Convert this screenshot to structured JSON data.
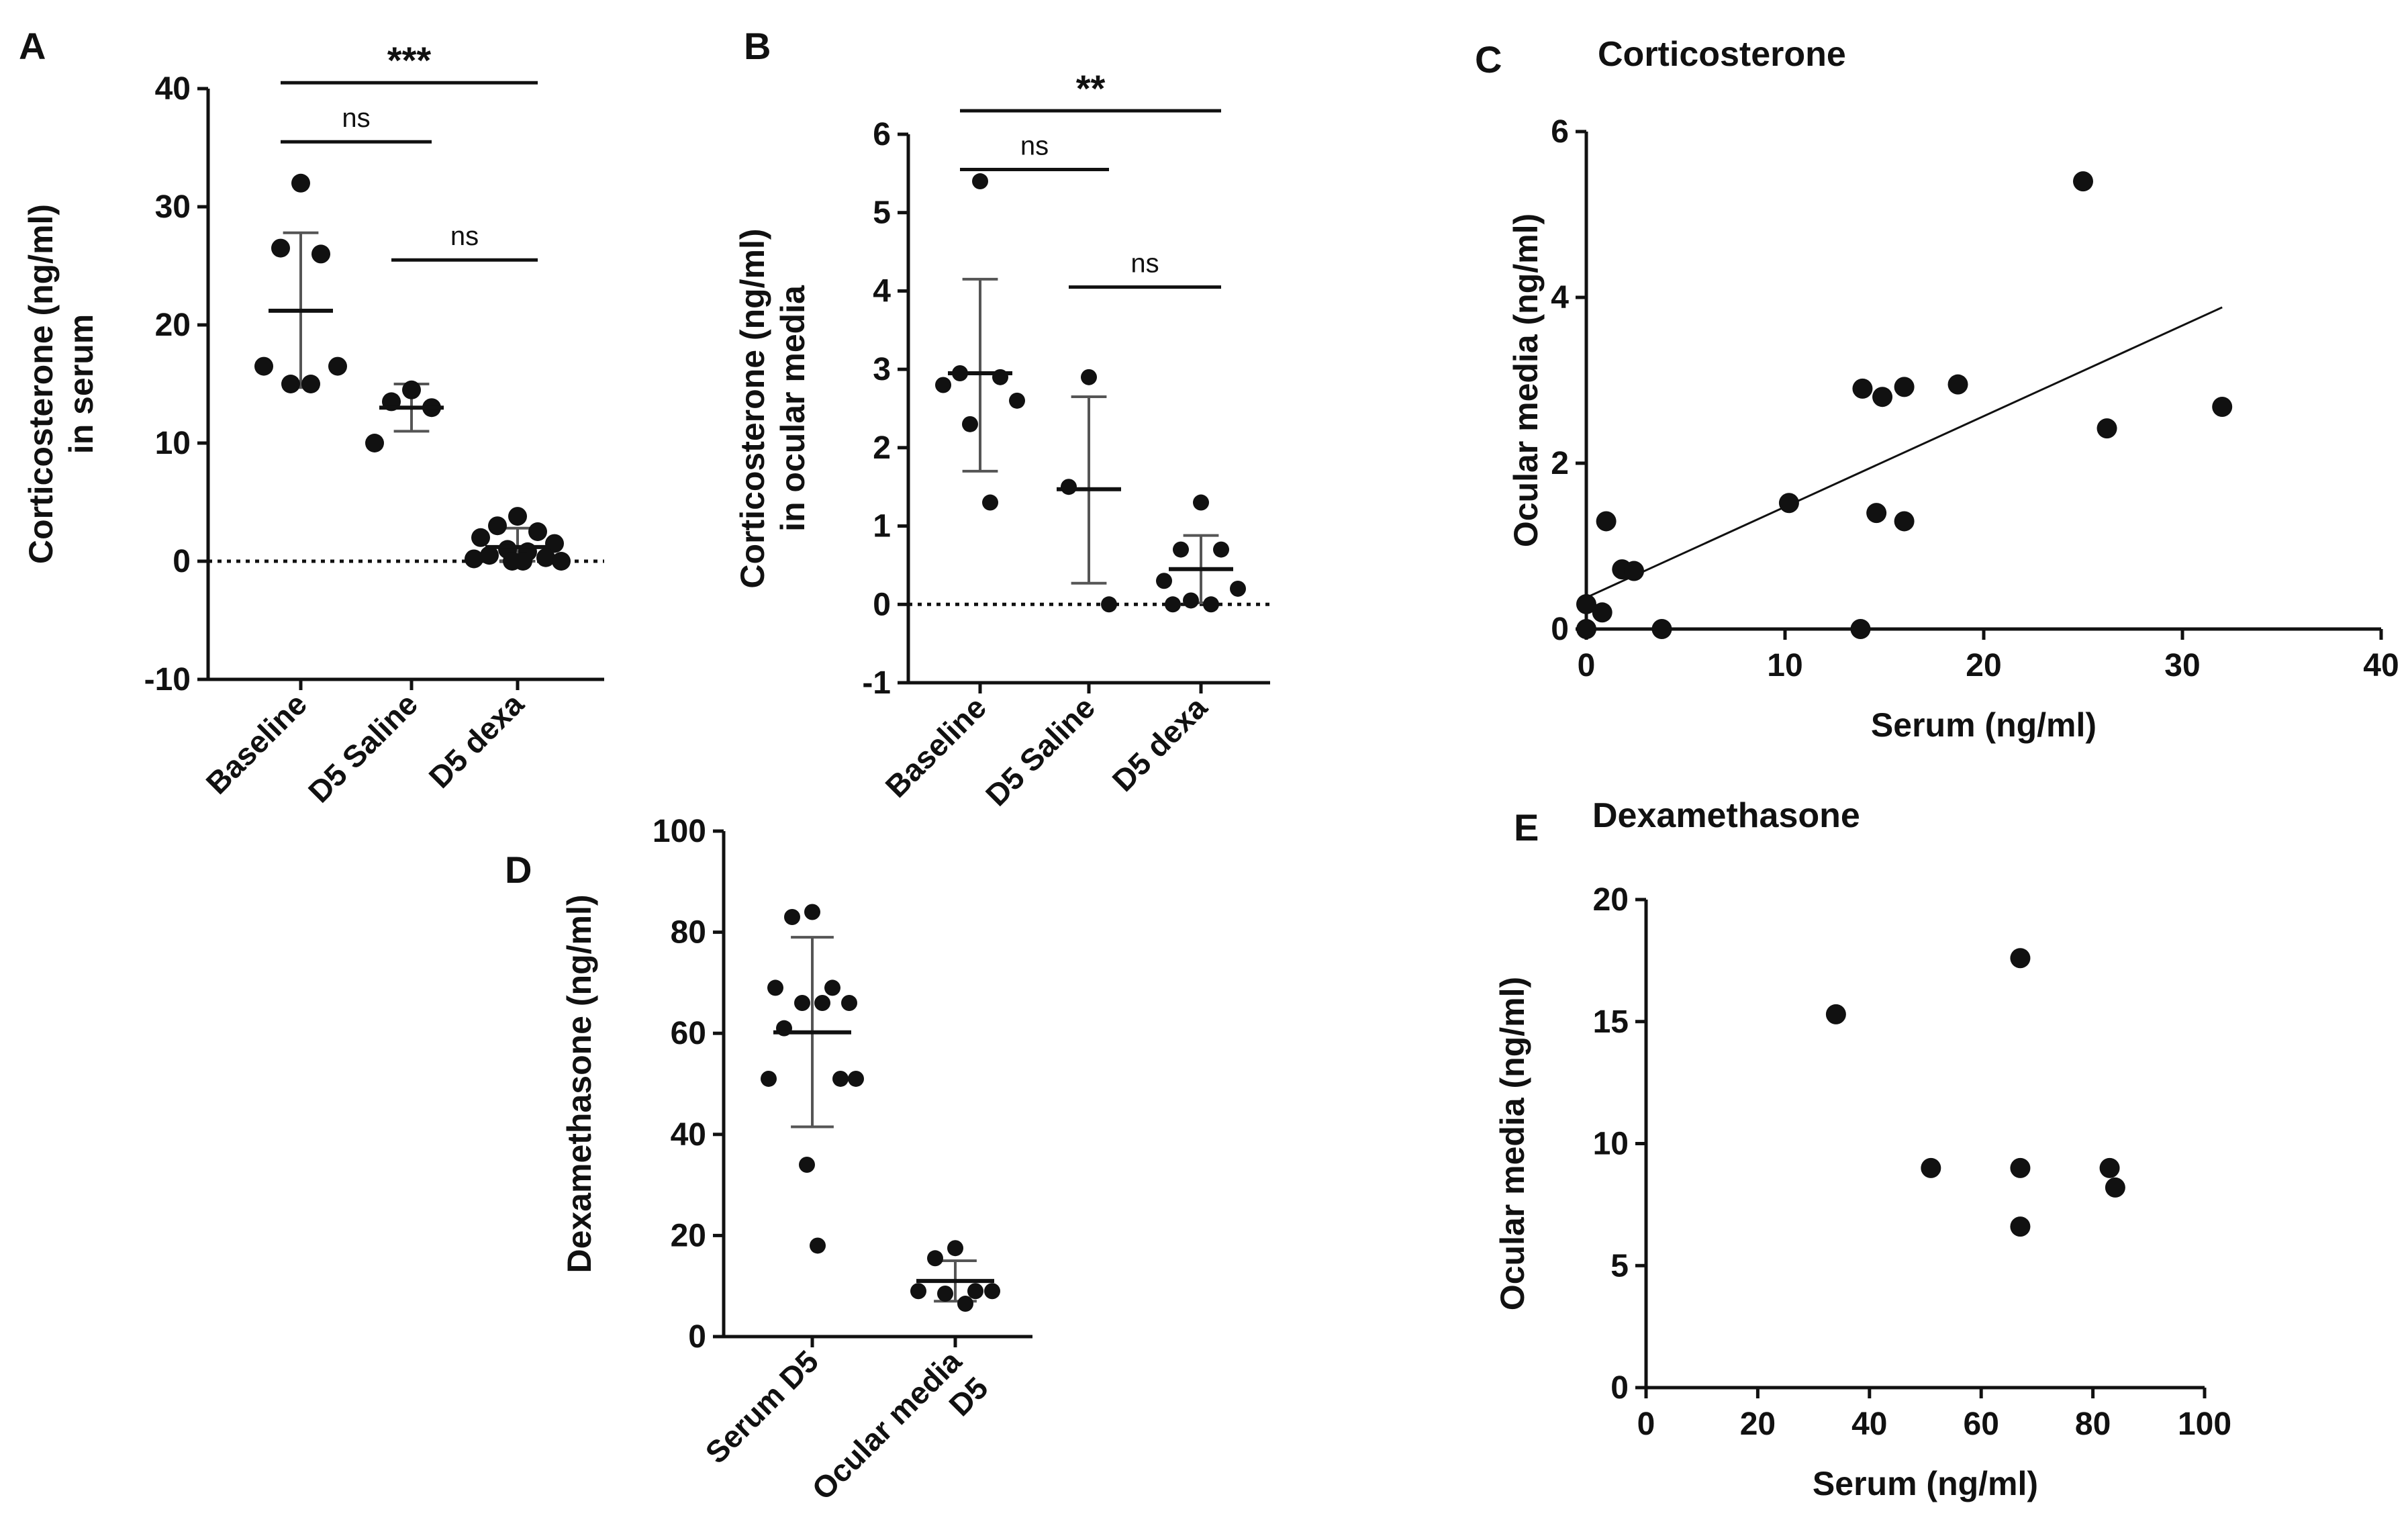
{
  "colors": {
    "ink": "#111111",
    "errorbar": "#555555"
  },
  "chart_data": [
    {
      "panel": "A",
      "type": "scatter",
      "ylabel": "Corticosterone (ng/ml)\nin serum",
      "ylim": [
        -10,
        40
      ],
      "yticks": [
        -10,
        0,
        10,
        20,
        30,
        40
      ],
      "categories": [
        "Baseline",
        "D5 Saline",
        "D5 dexa"
      ],
      "points": [
        [
          32,
          26.5,
          26,
          16.5,
          16.5,
          15,
          15
        ],
        [
          14.5,
          13.5,
          13,
          10
        ],
        [
          3.8,
          3,
          2.5,
          2,
          1.5,
          1,
          0.8,
          0.5,
          0.3,
          0.2,
          0,
          0,
          0
        ]
      ],
      "means": [
        21.2,
        13,
        1.2
      ],
      "sd_upper": [
        27.8,
        15,
        2.8
      ],
      "sd_lower": [
        14.7,
        11,
        0
      ],
      "reference_line": 0,
      "significance": [
        {
          "from": 0,
          "to": 1,
          "label": "ns",
          "y": 35.5
        },
        {
          "from": 1,
          "to": 2,
          "label": "ns",
          "y": 25.5
        },
        {
          "from": 0,
          "to": 2,
          "label": "***",
          "y": 40.5
        }
      ]
    },
    {
      "panel": "B",
      "type": "scatter",
      "ylabel": "Corticosterone (ng/ml)\nin ocular media",
      "ylim": [
        -1,
        6
      ],
      "yticks": [
        -1,
        0,
        1,
        2,
        3,
        4,
        5,
        6
      ],
      "categories": [
        "Baseline",
        "D5 Saline",
        "D5 dexa"
      ],
      "points": [
        [
          5.4,
          2.95,
          2.9,
          2.8,
          2.6,
          2.3,
          1.3
        ],
        [
          2.9,
          1.5,
          0
        ],
        [
          1.3,
          0.7,
          0.7,
          0.3,
          0.2,
          0.05,
          0,
          0
        ]
      ],
      "means": [
        2.95,
        1.47,
        0.45
      ],
      "sd_upper": [
        4.15,
        2.65,
        0.88
      ],
      "sd_lower": [
        1.7,
        0.27,
        0.02
      ],
      "reference_line": 0,
      "significance": [
        {
          "from": 0,
          "to": 1,
          "label": "ns",
          "y": 5.55
        },
        {
          "from": 1,
          "to": 2,
          "label": "ns",
          "y": 4.05
        },
        {
          "from": 0,
          "to": 2,
          "label": "**",
          "y": 6.3
        }
      ]
    },
    {
      "panel": "C",
      "type": "scatter",
      "title": "Corticosterone",
      "xlabel": "Serum (ng/ml)",
      "ylabel": "Ocular media (ng/ml)",
      "xlim": [
        0,
        40
      ],
      "ylim": [
        0,
        6
      ],
      "xticks": [
        0,
        10,
        20,
        30,
        40
      ],
      "yticks": [
        0,
        2,
        4,
        6
      ],
      "x": [
        0,
        0,
        0.8,
        1,
        1.8,
        2.4,
        3.8,
        10.2,
        13.8,
        13.9,
        14.6,
        14.9,
        16,
        16,
        18.7,
        25,
        26.2,
        32
      ],
      "y": [
        0.3,
        0,
        0.2,
        1.3,
        0.72,
        0.7,
        0,
        1.52,
        0,
        2.9,
        1.4,
        2.8,
        1.3,
        2.92,
        2.95,
        5.4,
        2.42,
        2.68
      ],
      "fit_line": {
        "x": [
          0,
          32
        ],
        "y": [
          0.38,
          3.88
        ]
      }
    },
    {
      "panel": "D",
      "type": "scatter",
      "ylabel": "Dexamethasone (ng/ml)",
      "ylim": [
        0,
        100
      ],
      "yticks": [
        0,
        20,
        40,
        60,
        80,
        100
      ],
      "categories": [
        "Serum D5",
        "Ocular media\nD5"
      ],
      "points": [
        [
          84,
          83,
          69,
          69,
          66,
          66,
          66,
          61,
          51,
          51,
          51,
          34,
          18
        ],
        [
          17.5,
          15.5,
          9,
          9,
          9,
          8.5,
          6.5
        ]
      ],
      "means": [
        60.2,
        11
      ],
      "sd_upper": [
        79,
        15
      ],
      "sd_lower": [
        41.5,
        7
      ]
    },
    {
      "panel": "E",
      "type": "scatter",
      "title": "Dexamethasone",
      "xlabel": "Serum (ng/ml)",
      "ylabel": "Ocular media (ng/ml)",
      "xlim": [
        0,
        100
      ],
      "ylim": [
        0,
        20
      ],
      "xticks": [
        0,
        20,
        40,
        60,
        80,
        100
      ],
      "yticks": [
        0,
        5,
        10,
        15,
        20
      ],
      "x": [
        34,
        51,
        67,
        67,
        67,
        83,
        84
      ],
      "y": [
        15.3,
        9,
        17.6,
        9,
        6.6,
        9,
        8.2
      ]
    }
  ]
}
